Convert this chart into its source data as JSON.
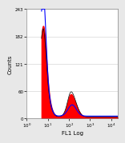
{
  "title": "",
  "xlabel": "FL1 Log",
  "ylabel": "Counts",
  "xlim_log": [
    0.7,
    4.3
  ],
  "ylim": [
    0,
    243
  ],
  "yticks": [
    0,
    60,
    121,
    182,
    243
  ],
  "ytick_labels": [
    "0",
    "60",
    "121",
    "182",
    "243"
  ],
  "bg_color": "#e8e8e8",
  "plot_bg_color": "#ffffff",
  "red_fill": "#ff0000",
  "blue_line": "#0000ff",
  "black_line": "#000000"
}
